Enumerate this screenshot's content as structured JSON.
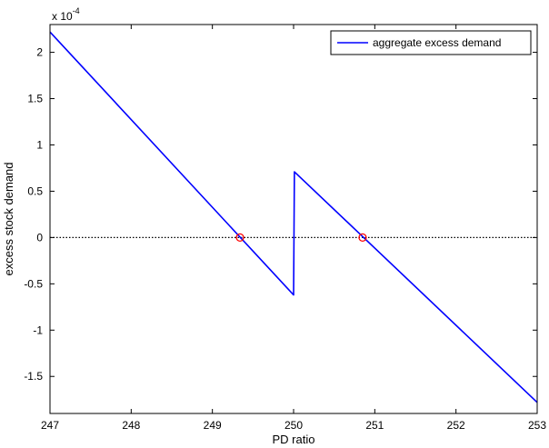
{
  "chart_data": {
    "type": "line",
    "xlabel": "PD ratio",
    "ylabel": "excess stock demand",
    "exponent_label": "x 10",
    "exponent_power": "-4",
    "xlim": [
      247,
      253
    ],
    "ylim": [
      -1.9,
      2.3
    ],
    "x_ticks": [
      247,
      248,
      249,
      250,
      251,
      252,
      253
    ],
    "y_ticks": [
      -1.5,
      -1,
      -0.5,
      0,
      0.5,
      1,
      1.5,
      2
    ],
    "y_tick_labels": [
      "-1.5",
      "-1",
      "-0.5",
      "0",
      "0.5",
      "1",
      "1.5",
      "2"
    ],
    "x_tick_labels": [
      "247",
      "248",
      "249",
      "250",
      "251",
      "252",
      "253"
    ],
    "grid": false,
    "legend_position": "top-right",
    "series": [
      {
        "name": "aggregate excess demand",
        "color": "#0000ff",
        "x": [
          247,
          250.0,
          250.0,
          250.01,
          253
        ],
        "y": [
          2.22,
          -0.62,
          -0.62,
          0.71,
          -1.78
        ]
      }
    ],
    "zero_line": {
      "y": 0,
      "style": "dotted",
      "color": "#000000"
    },
    "equilibria": {
      "color": "#ff0000",
      "marker": "circle",
      "x": [
        249.34,
        250.85
      ],
      "y": [
        0,
        0
      ]
    }
  }
}
